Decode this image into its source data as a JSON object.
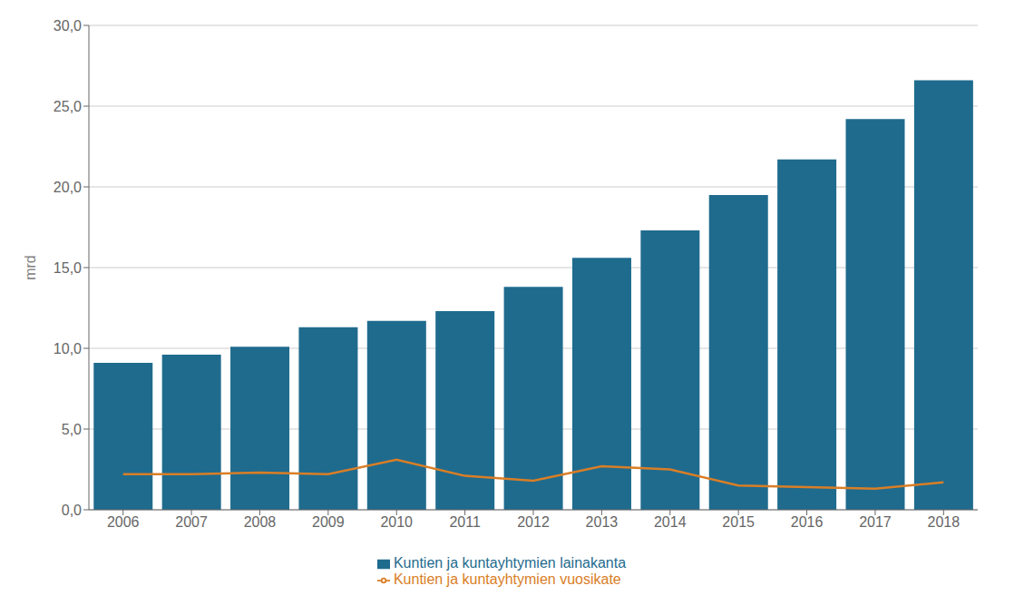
{
  "chart_data": {
    "type": "bar",
    "ylabel": "mrd",
    "categories": [
      "2006",
      "2007",
      "2008",
      "2009",
      "2010",
      "2011",
      "2012",
      "2013",
      "2014",
      "2015",
      "2016",
      "2017",
      "2018"
    ],
    "series": [
      {
        "name": "Kuntien ja kuntayhtymien lainakanta",
        "type": "bar",
        "color": "#1f6b8e",
        "values": [
          9.1,
          9.6,
          10.1,
          11.3,
          11.7,
          12.3,
          13.8,
          15.6,
          17.3,
          19.5,
          21.7,
          24.2,
          26.6
        ]
      },
      {
        "name": "Kuntien ja kuntayhtymien vuosikate",
        "type": "line",
        "color": "#d97e26",
        "values": [
          2.2,
          2.2,
          2.3,
          2.2,
          3.1,
          2.1,
          1.8,
          2.7,
          2.5,
          1.5,
          1.4,
          1.3,
          1.7
        ]
      }
    ],
    "ylim": [
      0,
      30
    ],
    "yticks": [
      {
        "value": 0,
        "label": "0,0"
      },
      {
        "value": 5,
        "label": "5,0"
      },
      {
        "value": 10,
        "label": "10,0"
      },
      {
        "value": 15,
        "label": "15,0"
      },
      {
        "value": 20,
        "label": "20,0"
      },
      {
        "value": 25,
        "label": "25,0"
      },
      {
        "value": 30,
        "label": "30,0"
      }
    ],
    "grid": true,
    "legend": "bottom"
  }
}
